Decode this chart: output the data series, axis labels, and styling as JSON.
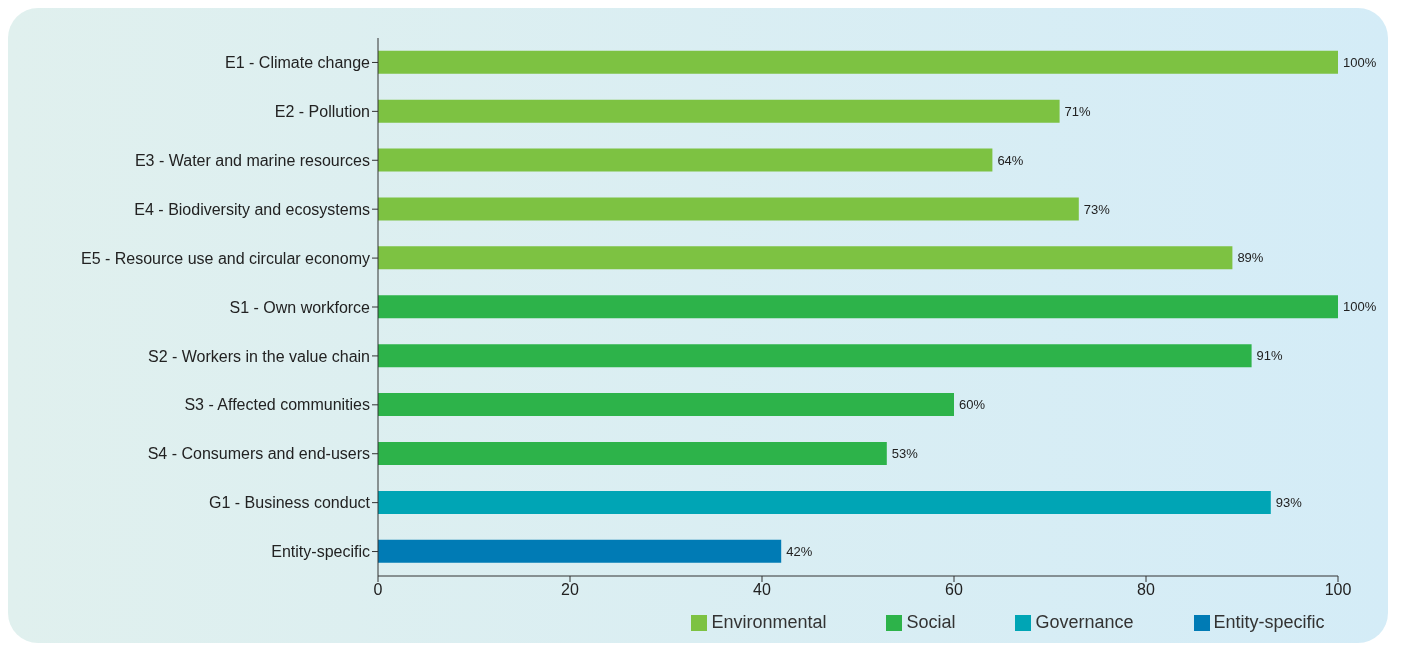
{
  "chart_data": {
    "type": "bar",
    "orientation": "horizontal",
    "stacked": true,
    "categories": [
      "E1 - Climate change",
      "E2 - Pollution",
      "E3 - Water and marine resources",
      "E4 - Biodiversity and ecosystems",
      "E5 - Resource use and circular economy",
      "S1 - Own workforce",
      "S2 - Workers in the value chain",
      "S3 - Affected communities",
      "S4 - Consumers and end-users",
      "G1 - Business conduct",
      "Entity-specific"
    ],
    "series": [
      {
        "name": "Environmental",
        "color": "#7dc242",
        "values": [
          100,
          71,
          64,
          73,
          89,
          null,
          null,
          null,
          null,
          null,
          null
        ],
        "value_labels": [
          "100%",
          "71%",
          "64%",
          "73%",
          "89%",
          null,
          null,
          null,
          null,
          null,
          null
        ]
      },
      {
        "name": "Social",
        "color": "#2db34a",
        "values": [
          null,
          null,
          null,
          null,
          null,
          100,
          91,
          60,
          53,
          null,
          null
        ],
        "value_labels": [
          null,
          null,
          null,
          null,
          null,
          "100%",
          "91%",
          "60%",
          "53%",
          null,
          null
        ]
      },
      {
        "name": "Governance",
        "color": "#00a5b5",
        "values": [
          null,
          null,
          null,
          null,
          null,
          null,
          null,
          null,
          null,
          93,
          null
        ],
        "value_labels": [
          null,
          null,
          null,
          null,
          null,
          null,
          null,
          null,
          null,
          "93%",
          null
        ]
      },
      {
        "name": "Entity-specific",
        "color": "#007bb5",
        "values": [
          null,
          null,
          null,
          null,
          null,
          null,
          null,
          null,
          null,
          null,
          42
        ],
        "value_labels": [
          null,
          null,
          null,
          null,
          null,
          null,
          null,
          null,
          null,
          null,
          "42%"
        ]
      }
    ],
    "xlim": [
      0,
      100
    ],
    "xticks": [
      0,
      20,
      40,
      60,
      80,
      100
    ],
    "grid": false,
    "legend": "bottom"
  }
}
